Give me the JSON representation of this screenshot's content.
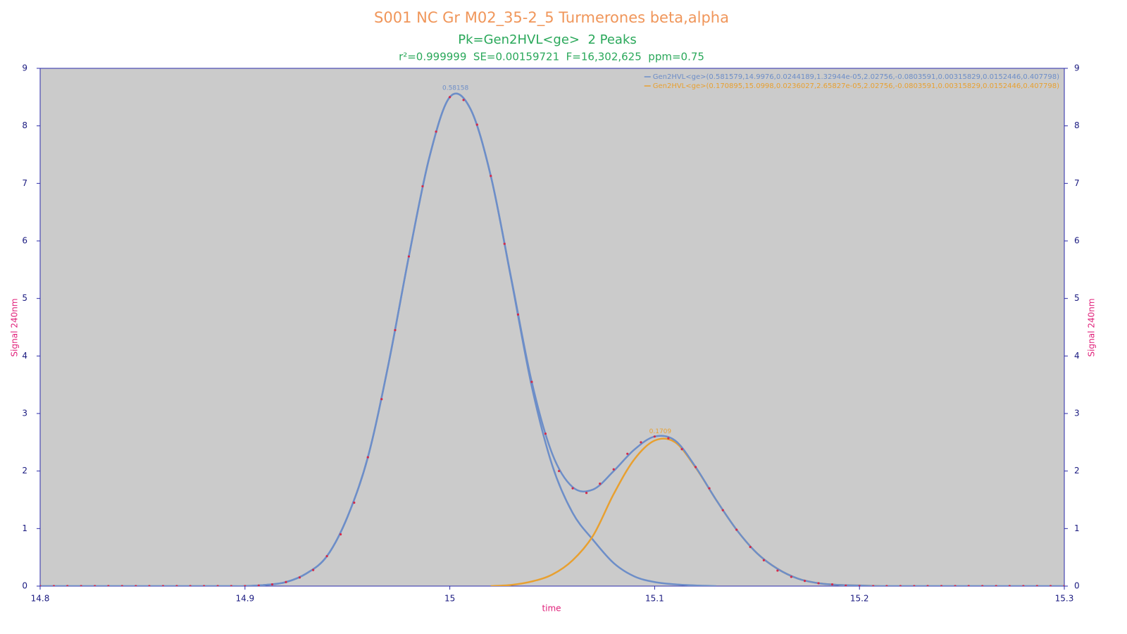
{
  "chart_data": {
    "type": "line",
    "title": "S001 NC Gr M02_35-2_5 Turmerones beta,alpha",
    "subtitle": "Pk=Gen2HVL<ge>  2 Peaks",
    "stats": "r²=0.999999  SE=0.00159721  F=16,302,625  ppm=0.75",
    "xlabel": "time",
    "ylabel": "Signal 240nm",
    "y2label": "Signal 240nm",
    "xlim": [
      14.8,
      15.3
    ],
    "xticks": [
      14.8,
      14.9,
      15,
      15.1,
      15.2,
      15.3
    ],
    "ylim": [
      0,
      9
    ],
    "yticks": [
      0,
      1,
      2,
      3,
      4,
      5,
      6,
      7,
      8,
      9
    ],
    "y2lim": [
      0,
      9
    ],
    "y2ticks": [
      0,
      1,
      2,
      3,
      4,
      5,
      6,
      7,
      8,
      9
    ],
    "legend": "upper right",
    "x": [
      14.8,
      14.81,
      14.82,
      14.83,
      14.84,
      14.85,
      14.86,
      14.87,
      14.88,
      14.89,
      14.9,
      14.91,
      14.92,
      14.93,
      14.94,
      14.95,
      14.96,
      14.97,
      14.98,
      14.99,
      15.0,
      15.01,
      15.02,
      15.03,
      15.04,
      15.05,
      15.06,
      15.07,
      15.08,
      15.09,
      15.1,
      15.11,
      15.12,
      15.13,
      15.14,
      15.15,
      15.16,
      15.17,
      15.18,
      15.19,
      15.2,
      15.21,
      15.22,
      15.23,
      15.24,
      15.25,
      15.26,
      15.27,
      15.28,
      15.29,
      15.3
    ],
    "series": [
      {
        "name": "Gen2HVL<ge>(0.581579,14.9976,0.0244189,1.32944e-05,2.02756,-0.0803591,0.00315829,0.0152446,0.407798)",
        "color": "#6d8ec8",
        "peak_label": "0.58158",
        "values": [
          null,
          null,
          null,
          null,
          null,
          null,
          null,
          null,
          null,
          null,
          0,
          0.02,
          0.07,
          0.22,
          0.52,
          1.2,
          2.24,
          3.85,
          5.73,
          7.45,
          8.5,
          8.3,
          7.13,
          5.33,
          3.47,
          2.1,
          1.27,
          0.8,
          0.4,
          0.17,
          0.07,
          0.03,
          0.01,
          0,
          null,
          null,
          null,
          null,
          null,
          null,
          null,
          null,
          null,
          null,
          null,
          null,
          null,
          null,
          null,
          null,
          null
        ]
      },
      {
        "name": "Gen2HVL<ge>(0.170895,15.0998,0.0236027,2.65827e-05,2.02756,-0.0803591,0.00315829,0.0152446,0.407798)",
        "color": "#e8a030",
        "peak_label": "0.1709",
        "values": [
          null,
          null,
          null,
          null,
          null,
          null,
          null,
          null,
          null,
          null,
          null,
          null,
          null,
          null,
          null,
          null,
          null,
          null,
          null,
          null,
          null,
          null,
          0,
          0.02,
          0.08,
          0.2,
          0.45,
          0.88,
          1.6,
          2.2,
          2.53,
          2.5,
          2.06,
          1.5,
          0.98,
          0.57,
          0.3,
          0.13,
          0.05,
          0.02,
          0.01,
          0,
          null,
          null,
          null,
          null,
          null,
          null,
          null,
          null,
          null
        ]
      },
      {
        "color": "#6d8ec8",
        "values": [
          0,
          0,
          0,
          0,
          0,
          0,
          0,
          0,
          0,
          0,
          0,
          0.02,
          0.07,
          0.22,
          0.52,
          1.2,
          2.24,
          3.85,
          5.73,
          7.45,
          8.5,
          8.3,
          7.13,
          5.35,
          3.55,
          2.3,
          1.72,
          1.68,
          2.0,
          2.37,
          2.6,
          2.53,
          2.07,
          1.5,
          0.98,
          0.57,
          0.3,
          0.13,
          0.05,
          0.02,
          0.01,
          0,
          0,
          0,
          0,
          0,
          0,
          0,
          0,
          0,
          0
        ]
      },
      {
        "type": "scatter",
        "color": "#d42a4a",
        "x": [
          14.8,
          14.8067,
          14.8133,
          14.82,
          14.8267,
          14.8333,
          14.84,
          14.8467,
          14.8533,
          14.86,
          14.8667,
          14.8733,
          14.88,
          14.8867,
          14.8933,
          14.9,
          14.9067,
          14.9133,
          14.92,
          14.9267,
          14.9333,
          14.94,
          14.9467,
          14.9533,
          14.96,
          14.9667,
          14.9733,
          14.98,
          14.9867,
          14.9933,
          15.0,
          15.0067,
          15.0133,
          15.02,
          15.0267,
          15.0333,
          15.04,
          15.0467,
          15.0533,
          15.06,
          15.0667,
          15.0733,
          15.08,
          15.0867,
          15.0933,
          15.1,
          15.1067,
          15.1133,
          15.12,
          15.1267,
          15.1333,
          15.14,
          15.1467,
          15.1533,
          15.16,
          15.1667,
          15.1733,
          15.18,
          15.1867,
          15.1933,
          15.2,
          15.2067,
          15.2133,
          15.22,
          15.2267,
          15.2333,
          15.24,
          15.2467,
          15.2533,
          15.26,
          15.2667,
          15.2733,
          15.28,
          15.2867,
          15.2933,
          15.3
        ],
        "values": [
          0,
          0,
          0,
          0,
          0,
          0,
          0,
          0,
          0,
          0,
          0,
          0,
          0,
          0,
          0,
          0,
          0.01,
          0.03,
          0.07,
          0.15,
          0.28,
          0.52,
          0.9,
          1.45,
          2.24,
          3.25,
          4.45,
          5.73,
          6.95,
          7.9,
          8.5,
          8.45,
          8.02,
          7.13,
          5.95,
          4.72,
          3.55,
          2.65,
          2.0,
          1.7,
          1.62,
          1.78,
          2.03,
          2.3,
          2.5,
          2.6,
          2.57,
          2.38,
          2.07,
          1.7,
          1.32,
          0.98,
          0.68,
          0.45,
          0.27,
          0.16,
          0.09,
          0.05,
          0.03,
          0.01,
          0,
          0,
          0,
          0,
          0,
          0,
          0,
          0,
          0,
          0,
          0,
          0,
          0,
          0,
          0,
          0
        ]
      }
    ]
  }
}
